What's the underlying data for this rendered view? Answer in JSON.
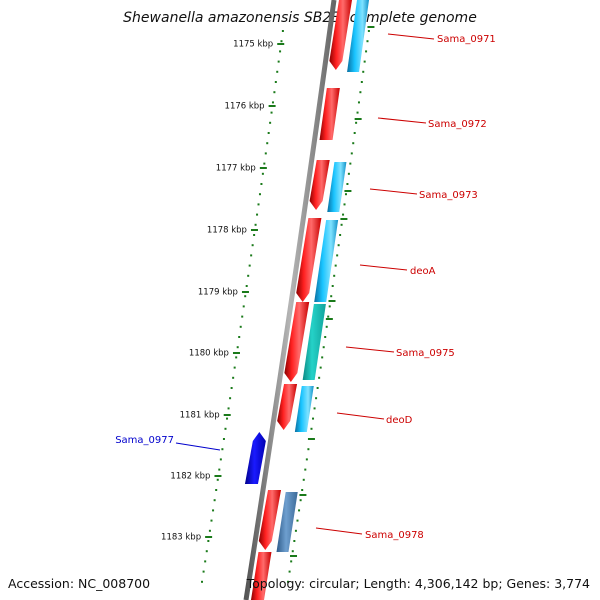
{
  "title": "Shewanella amazonensis SB2B, complete genome",
  "footer": {
    "accession": "Accession: NC_008700",
    "summary": "Topology: circular; Length: 4,306,142 bp; Genes: 3,774"
  },
  "colors": {
    "backbone": "#8a8a8a",
    "forward_gene": "#e60000",
    "cds": "#19b8f0",
    "cds_alt": "#1fc8c0",
    "cds_dark": "#4a7ab0",
    "minus_strand_gene": "#0000e0",
    "tick": "#1a7a1a",
    "label_red": "#cc0000",
    "label_blue": "#0000cc"
  },
  "scale_ticks": [
    {
      "label": "1175 kbp"
    },
    {
      "label": "1176 kbp"
    },
    {
      "label": "1177 kbp"
    },
    {
      "label": "1178 kbp"
    },
    {
      "label": "1179 kbp"
    },
    {
      "label": "1180 kbp"
    },
    {
      "label": "1181 kbp"
    },
    {
      "label": "1182 kbp"
    },
    {
      "label": "1183 kbp"
    }
  ],
  "gene_labels": [
    {
      "name": "Sama_0971",
      "side": "right"
    },
    {
      "name": "Sama_0972",
      "side": "right"
    },
    {
      "name": "Sama_0973",
      "side": "right"
    },
    {
      "name": "deoA",
      "side": "right"
    },
    {
      "name": "Sama_0975",
      "side": "right"
    },
    {
      "name": "deoD",
      "side": "right"
    },
    {
      "name": "Sama_0977",
      "side": "left"
    },
    {
      "name": "Sama_0978",
      "side": "right"
    }
  ]
}
